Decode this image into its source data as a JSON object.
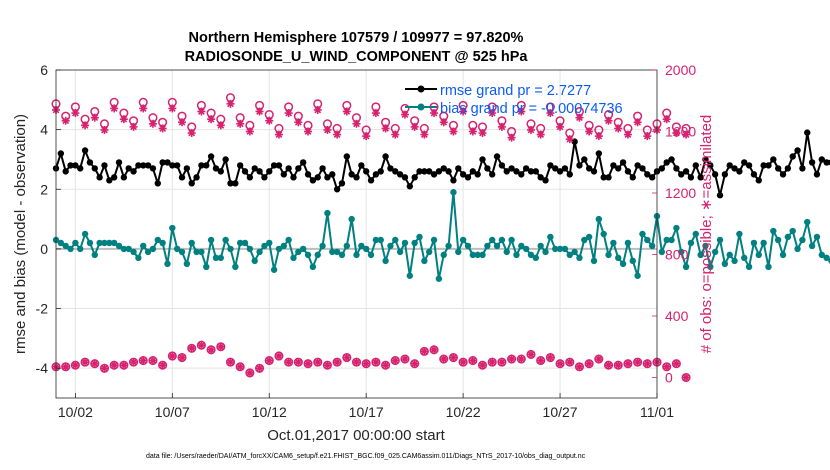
{
  "colors": {
    "rmse": "#000000",
    "bias": "#008080",
    "obs": "#d6226f",
    "zero_line": "#bdbdbd",
    "legend_text": "#0a5cf5"
  },
  "chart_data": {
    "type": "line",
    "title": "Northern Hemisphere 107579 / 109977 = 97.820%",
    "subtitle": "RADIOSONDE_U_WIND_COMPONENT @ 525 hPa",
    "xlabel": "Oct.01,2017 00:00:00 start",
    "ylabel_left": "rmse and bias (model - observation)",
    "ylabel_right": "# of obs: o=possible; ∗=assimilated",
    "footnote": "data file: /Users/raeder/DAI/ATM_forcXX/CAM6_setup/f.e21.FHIST_BGC.f09_025.CAM6assim.011/Diags_NTrS_2017-10/obs_diag_output.nc",
    "xlim": [
      1,
      32
    ],
    "ylim_left": [
      -5,
      6
    ],
    "ylim_right": [
      -133.3,
      2000
    ],
    "grid": true,
    "legend_position": "top-right",
    "xtick_labels": [
      "10/02",
      "10/07",
      "10/12",
      "10/17",
      "10/22",
      "10/27",
      "11/01"
    ],
    "xtick_values": [
      2,
      7,
      12,
      17,
      22,
      27,
      32
    ],
    "ytick_left": [
      "6",
      "4",
      "2",
      "0",
      "-2",
      "-4"
    ],
    "ytick_left_values": [
      6,
      4,
      2,
      0,
      -2,
      -4
    ],
    "ytick_right": [
      "2000",
      "1600",
      "1200",
      "800",
      "400",
      "0"
    ],
    "ytick_right_values": [
      2000,
      1600,
      1200,
      800,
      400,
      0
    ],
    "legend": [
      "rmse grand pr = 2.7277",
      "bias grand pr = -0.00074736"
    ],
    "series": [
      {
        "name": "rmse",
        "axis": "left",
        "marker": "filled-circle",
        "x_start": 1,
        "x_step": 0.25,
        "values": [
          2.7,
          3.2,
          2.6,
          2.8,
          2.8,
          2.7,
          3.3,
          2.9,
          2.7,
          2.4,
          2.8,
          2.3,
          2.4,
          2.9,
          2.4,
          2.7,
          2.6,
          2.8,
          2.8,
          2.8,
          2.7,
          2.2,
          2.9,
          2.9,
          2.8,
          2.8,
          2.4,
          2.7,
          2.2,
          2.4,
          2.8,
          2.8,
          3.1,
          2.7,
          2.6,
          3.0,
          2.2,
          2.2,
          2.8,
          2.6,
          2.4,
          2.7,
          2.6,
          2.4,
          2.6,
          2.8,
          2.8,
          2.5,
          2.7,
          2.4,
          2.7,
          2.9,
          2.5,
          2.3,
          2.4,
          2.7,
          2.4,
          2.5,
          2.0,
          2.2,
          3.1,
          2.5,
          2.4,
          2.8,
          2.6,
          2.3,
          2.5,
          2.6,
          3.1,
          2.7,
          2.6,
          2.5,
          2.4,
          2.1,
          2.4,
          2.6,
          2.6,
          2.6,
          2.5,
          2.6,
          2.7,
          2.6,
          2.3,
          2.7,
          2.5,
          2.4,
          2.6,
          2.5,
          3.0,
          2.7,
          2.5,
          3.1,
          2.8,
          2.6,
          2.7,
          2.6,
          2.5,
          2.7,
          2.6,
          2.6,
          2.4,
          2.3,
          2.8,
          2.7,
          2.6,
          2.7,
          2.5,
          3.6,
          2.8,
          3.0,
          2.7,
          2.6,
          3.2,
          2.4,
          2.4,
          2.8,
          2.7,
          2.9,
          2.6,
          2.4,
          2.8,
          2.7,
          2.5,
          2.4,
          2.6,
          2.7,
          2.9,
          3.0,
          2.7,
          2.5,
          2.6,
          2.4,
          2.8,
          2.4,
          3.0,
          2.8,
          2.5,
          1.8,
          2.5,
          2.8,
          2.7,
          2.6,
          2.9,
          2.8,
          2.5,
          2.3,
          2.8,
          2.8,
          3.0,
          2.7,
          2.5,
          2.7,
          3.1,
          3.3,
          2.7,
          3.9,
          2.9,
          2.5,
          3.0,
          2.9,
          2.9,
          2.6,
          3.0,
          2.6,
          2.1,
          2.9,
          2.6,
          2.9,
          2.7,
          2.6,
          2.8,
          2.7
        ]
      },
      {
        "name": "bias",
        "axis": "left",
        "marker": "filled-circle",
        "x_start": 1,
        "x_step": 0.25,
        "values": [
          0.3,
          0.2,
          0.1,
          0.0,
          0.2,
          0.0,
          0.5,
          0.2,
          -0.2,
          0.2,
          0.2,
          0.2,
          0.2,
          0.1,
          0.0,
          0.0,
          -0.1,
          -0.3,
          0.1,
          -0.1,
          0.0,
          0.3,
          0.2,
          -0.5,
          0.7,
          0.0,
          -0.1,
          -0.5,
          0.2,
          -0.1,
          -0.1,
          -0.6,
          0.3,
          -0.3,
          -0.3,
          0.3,
          0.0,
          -0.6,
          0.2,
          0.2,
          0.0,
          -0.4,
          -0.1,
          0.1,
          0.2,
          -0.7,
          0.0,
          0.1,
          0.3,
          -0.3,
          -0.1,
          0.0,
          -0.2,
          -0.6,
          -0.2,
          0.1,
          1.2,
          -0.1,
          -0.1,
          -0.2,
          0.1,
          1.0,
          -0.2,
          0.1,
          0.0,
          -0.2,
          0.3,
          0.3,
          -0.4,
          0.1,
          0.3,
          -0.1,
          0.2,
          -0.9,
          0.2,
          0.4,
          -0.4,
          -0.1,
          0.3,
          -1.0,
          -0.2,
          0.1,
          1.9,
          -0.1,
          0.3,
          0.1,
          -0.2,
          -0.2,
          -0.2,
          0.1,
          0.3,
          0.1,
          0.3,
          -0.1,
          0.3,
          -0.2,
          0.1,
          0.0,
          -0.2,
          -0.3,
          0.1,
          -0.1,
          0.4,
          0.0,
          0.0,
          0.0,
          -0.2,
          -0.1,
          -0.3,
          0.3,
          0.4,
          -0.4,
          1.0,
          0.5,
          -0.2,
          0.2,
          -0.3,
          -0.5,
          0.2,
          -0.4,
          -0.9,
          0.5,
          0.3,
          0.1,
          1.1,
          -0.1,
          0.3,
          0.3,
          0.7,
          -0.1,
          -0.6,
          0.2,
          0.5,
          -0.2,
          0.1,
          -0.6,
          -0.1,
          0.3,
          -0.5,
          -0.2,
          -0.4,
          0.5,
          -0.3,
          -0.6,
          0.2,
          -0.2,
          0.2,
          -0.6,
          0.6,
          0.3,
          -0.2,
          0.4,
          0.6,
          0.0,
          0.3,
          0.9,
          0.1,
          0.4,
          -0.2,
          -0.3,
          -0.4,
          0.2,
          -0.6,
          0.1,
          0.0,
          1.2,
          0.7,
          0.5,
          0.2,
          0.0,
          -1.0,
          0.2,
          0.0
        ]
      },
      {
        "name": "obs possible",
        "axis": "right",
        "marker": "open-circle",
        "x_start": 1,
        "x_step": 0.5,
        "values": [
          1780,
          1700,
          1760,
          1680,
          1730,
          1650,
          1790,
          1720,
          1670,
          1790,
          1690,
          1660,
          1790,
          1700,
          1630,
          1770,
          1720,
          1680,
          1820,
          1690,
          1640,
          1770,
          1710,
          1620,
          1760,
          1700,
          1640,
          1780,
          1650,
          1620,
          1770,
          1690,
          1610,
          1760,
          1660,
          1620,
          1750,
          1670,
          1620,
          1760,
          1700,
          1640,
          1770,
          1640,
          1630,
          1760,
          1670,
          1600,
          1770,
          1650,
          1620,
          1760,
          1670,
          1590,
          1730,
          1640,
          1610,
          1710,
          1660,
          1620,
          1700,
          1610,
          1650,
          1720,
          1630,
          1620
        ]
      },
      {
        "name": "obs assimilated",
        "axis": "right",
        "marker": "asterisk",
        "x_start": 1,
        "x_step": 0.5,
        "values": [
          1740,
          1670,
          1720,
          1640,
          1690,
          1610,
          1750,
          1680,
          1630,
          1750,
          1650,
          1620,
          1750,
          1660,
          1590,
          1730,
          1680,
          1640,
          1780,
          1650,
          1600,
          1730,
          1670,
          1580,
          1720,
          1660,
          1600,
          1740,
          1610,
          1580,
          1730,
          1650,
          1570,
          1720,
          1620,
          1580,
          1710,
          1630,
          1580,
          1720,
          1660,
          1600,
          1730,
          1600,
          1590,
          1720,
          1630,
          1560,
          1730,
          1610,
          1580,
          1720,
          1630,
          1550,
          1690,
          1600,
          1570,
          1670,
          1620,
          1580,
          1660,
          1570,
          1610,
          1680,
          1590,
          1580
        ]
      },
      {
        "name": "obs possible low",
        "axis": "right",
        "marker": "open-circle",
        "x_start": 1,
        "x_step": 0.5,
        "values": [
          70,
          70,
          80,
          100,
          90,
          60,
          80,
          80,
          100,
          110,
          110,
          80,
          140,
          130,
          190,
          210,
          180,
          200,
          100,
          70,
          30,
          60,
          110,
          140,
          100,
          100,
          90,
          100,
          80,
          100,
          130,
          100,
          90,
          100,
          80,
          110,
          120,
          90,
          170,
          180,
          120,
          130,
          100,
          110,
          80,
          100,
          100,
          120,
          120,
          150,
          110,
          130,
          90,
          100,
          70,
          90,
          120,
          80,
          80,
          90,
          100,
          90,
          100,
          70,
          90,
          0
        ]
      },
      {
        "name": "obs assimilated low",
        "axis": "right",
        "marker": "asterisk",
        "x_start": 1,
        "x_step": 0.5,
        "values": [
          70,
          70,
          80,
          100,
          90,
          60,
          80,
          80,
          100,
          110,
          110,
          80,
          140,
          130,
          190,
          210,
          180,
          200,
          100,
          70,
          30,
          60,
          110,
          140,
          100,
          100,
          90,
          100,
          80,
          100,
          130,
          100,
          90,
          100,
          80,
          110,
          120,
          90,
          170,
          180,
          120,
          130,
          100,
          110,
          80,
          100,
          100,
          120,
          120,
          150,
          110,
          130,
          90,
          100,
          70,
          90,
          120,
          80,
          80,
          90,
          100,
          90,
          100,
          70,
          90,
          0
        ]
      }
    ]
  }
}
